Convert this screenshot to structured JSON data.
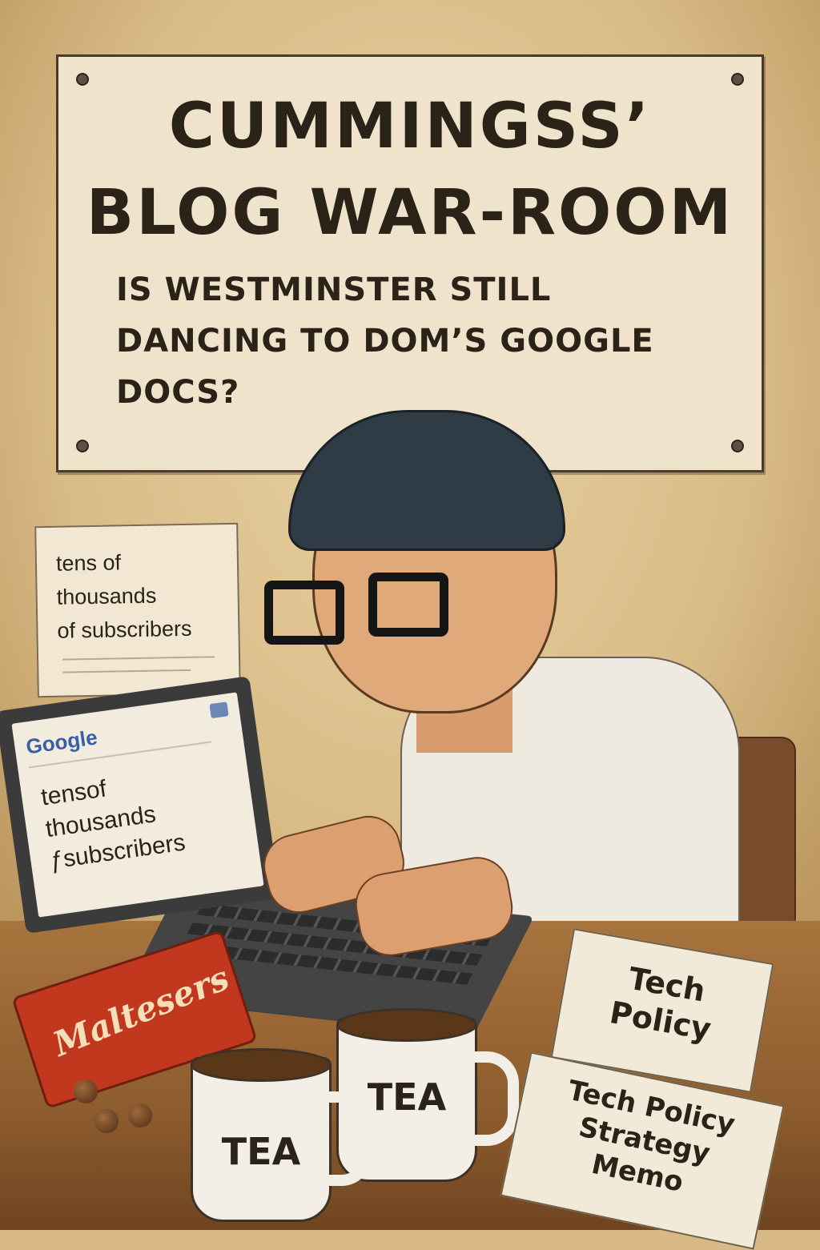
{
  "poster": {
    "title_line1": "CUMMINGSS’",
    "title_line2": "BLOG WAR-ROOM",
    "subtitle_line1": "IS WESTMINSTER STILL",
    "subtitle_line2": "DANCING TO DOM’S GOOGLE",
    "subtitle_line3": "DOCS?"
  },
  "wall_note": {
    "line1": "tens of",
    "line2": "thousands",
    "line3": "of subscribers"
  },
  "laptop": {
    "logo": "Google",
    "line1": "tensof",
    "line2": "thousands",
    "line3": "ƒsubscribers"
  },
  "snack_bag": {
    "label": "Maltesers"
  },
  "mugs": {
    "left_label": "TEA",
    "right_label": "TEA"
  },
  "papers": {
    "top": {
      "line1": "Tech",
      "line2": "Policy"
    },
    "bottom": {
      "line1": "Tech Policy",
      "line2": "Strategy",
      "line3": "Memo"
    }
  },
  "colors": {
    "wall": "#d9bb86",
    "poster_paper": "#efe4cb",
    "ink": "#2b2218",
    "beanie": "#2f3b45",
    "snack_bag": "#c2381f",
    "desk": "#8e5d2e"
  }
}
